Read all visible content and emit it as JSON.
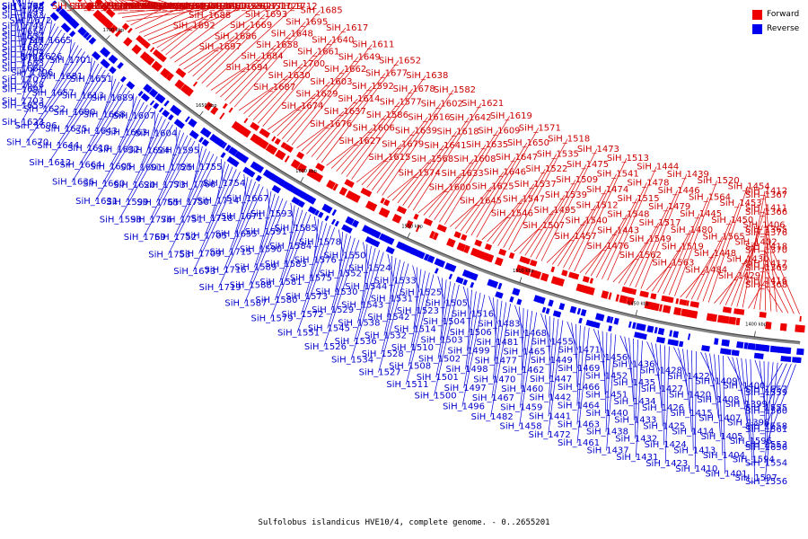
{
  "caption": "Sulfolobus islandicus HVE10/4, complete genome. - 0..2655201",
  "legend": [
    {
      "label": "Forward",
      "color": "#ee0000"
    },
    {
      "label": "Reverse",
      "color": "#0000ee"
    }
  ],
  "scale_ticks": [
    "1700 kbp",
    "1650 kbp",
    "1600 kbp",
    "1550 kbp",
    "1500 kbp",
    "1450 kbp",
    "1400 kbp"
  ],
  "forward_genes": [
    "SiH_1826",
    "SiH_1818",
    "SiH_1807",
    "SiH_1809",
    "SiH_1799",
    "SiH_1790",
    "SiH_1800",
    "SiH_1781",
    "SiH_1794",
    "SiH_1784",
    "SiH_1777",
    "SiH_1762",
    "SiH_1758",
    "SiH_1745",
    "SiH_1742",
    "SiH_1737",
    "SiH_1741",
    "SiH_1733",
    "SiH_1723",
    "SiH_1739",
    "SiH_1728",
    "SiH_1717",
    "SiH_1713",
    "SiH_1711",
    "SiH_1702",
    "SiH_1698",
    "SiH_1743",
    "SiH_1744",
    "SiH_1732",
    "SiH_1699",
    "SiH_1692",
    "SiH_1688",
    "SiH_1680",
    "SiH_1726",
    "SiH_1727",
    "SiH_1710",
    "SiH_1697",
    "SiH_1686",
    "SiH_1669",
    "SiH_1693",
    "SiH_1729",
    "SiH_1712",
    "SiH_1694",
    "SiH_1684",
    "SiH_1658",
    "SiH_1648",
    "SiH_1695",
    "SiH_1685",
    "SiH_1687",
    "SiH_1630",
    "SiH_1700",
    "SiH_1661",
    "SiH_1640",
    "SiH_1617",
    "SiH_1674",
    "SiH_1629",
    "SiH_1603",
    "SiH_1662",
    "SiH_1649",
    "SiH_1611",
    "SiH_1676",
    "SiH_1637",
    "SiH_1614",
    "SiH_1592",
    "SiH_1677",
    "SiH_1652",
    "SiH_1627",
    "SiH_1606",
    "SiH_1586",
    "SiH_1577",
    "SiH_1678",
    "SiH_1638",
    "SiH_1615",
    "SiH_1679",
    "SiH_1639",
    "SiH_1616",
    "SiH_1602",
    "SiH_1582",
    "SiH_1574",
    "SiH_1568",
    "SiH_1641",
    "SiH_1618",
    "SiH_1642",
    "SiH_1621",
    "SiH_1600",
    "SiH_1633",
    "SiH_1608",
    "SiH_1635",
    "SiH_1609",
    "SiH_1619",
    "SiH_1645",
    "SiH_1625",
    "SiH_1646",
    "SiH_1647",
    "SiH_1650",
    "SiH_1571",
    "SiH_1546",
    "SiH_1547",
    "SiH_1537",
    "SiH_1522",
    "SiH_1535",
    "SiH_1518",
    "SiH_1507",
    "SiH_1495",
    "SiH_1539",
    "SiH_1509",
    "SiH_1475",
    "SiH_1473",
    "SiH_1457",
    "SiH_1540",
    "SiH_1512",
    "SiH_1474",
    "SiH_1541",
    "SiH_1513",
    "SiH_1476",
    "SiH_1443",
    "SiH_1548",
    "SiH_1515",
    "SiH_1478",
    "SiH_1444",
    "SiH_1562",
    "SiH_1549",
    "SiH_1517",
    "SiH_1479",
    "SiH_1446",
    "SiH_1439",
    "SiH_1563",
    "SiH_1519",
    "SiH_1480",
    "SiH_1445",
    "SiH_1564",
    "SiH_1520",
    "SiH_1484",
    "SiH_1448",
    "SiH_1565",
    "SiH_1450",
    "SiH_1453",
    "SiH_1454",
    "SiH_1429",
    "SiH_1430",
    "SiH_1402",
    "SiH_1406",
    "SiH_1411",
    "SiH_1412",
    "SiH_1416",
    "SiH_1417",
    "SiH_1418",
    "SiH_1365",
    "SiH_1366",
    "SiH_1367",
    "SiH_1368",
    "SiH_1369",
    "SiH_1370",
    "SiH_1376"
  ],
  "reverse_genes": [
    "SiH_1778",
    "SiH_1768",
    "SiH_1749",
    "SiH_1748",
    "SiH_1747",
    "SiH_1746",
    "SiH_1708",
    "SiH_1683",
    "SiH_1654",
    "SiH_1682",
    "SiH_1653",
    "SiH_1707",
    "SiH_1672",
    "SiH_1634",
    "SiH_1704",
    "SiH_1666",
    "SiH_1628",
    "SiH_1703",
    "SiH_1665",
    "SiH_1626",
    "SiH_1706",
    "SiH_1691",
    "SiH_1659",
    "SiH_1623",
    "SiH_1701",
    "SiH_1681",
    "SiH_1657",
    "SiH_1622",
    "SiH_1696",
    "SiH_1670",
    "SiH_1651",
    "SiH_1613",
    "SiH_1690",
    "SiH_1675",
    "SiH_1644",
    "SiH_1612",
    "SiH_1689",
    "SiH_1668",
    "SiH_1643",
    "SiH_1610",
    "SiH_1664",
    "SiH_1636",
    "SiH_1607",
    "SiH_1663",
    "SiH_1632",
    "SiH_1605",
    "SiH_1660",
    "SiH_1631",
    "SiH_1604",
    "SiH_1624",
    "SiH_1601",
    "SiH_1620",
    "SiH_1599",
    "SiH_1598",
    "SiH_1595",
    "SiH_1725",
    "SiH_1773",
    "SiH_1765",
    "SiH_1776",
    "SiH_1769",
    "SiH_1755",
    "SiH_1766",
    "SiH_1750",
    "SiH_1751",
    "SiH_1752",
    "SiH_1753",
    "SiH_1754",
    "SiH_1714",
    "SiH_1718",
    "SiH_1705",
    "SiH_1709",
    "SiH_1673",
    "SiH_1667",
    "SiH_1671",
    "SiH_1655",
    "SiH_1715",
    "SiH_1716",
    "SiH_1719",
    "SiH_1593",
    "SiH_1591",
    "SiH_1590",
    "SiH_1589",
    "SiH_1588",
    "SiH_1587",
    "SiH_1585",
    "SiH_1584",
    "SiH_1583",
    "SiH_1581",
    "SiH_1580",
    "SiH_1579",
    "SiH_1578",
    "SiH_1576",
    "SiH_1575",
    "SiH_1573",
    "SiH_1572",
    "SiH_1551",
    "SiH_1550",
    "SiH_1552",
    "SiH_1530",
    "SiH_1529",
    "SiH_1545",
    "SiH_1526",
    "SiH_1524",
    "SiH_1544",
    "SiH_1543",
    "SiH_1538",
    "SiH_1536",
    "SiH_1534",
    "SiH_1533",
    "SiH_1531",
    "SiH_1542",
    "SiH_1532",
    "SiH_1528",
    "SiH_1527",
    "SiH_1525",
    "SiH_1523",
    "SiH_1514",
    "SiH_1510",
    "SiH_1508",
    "SiH_1511",
    "SiH_1505",
    "SiH_1504",
    "SiH_1503",
    "SiH_1502",
    "SiH_1501",
    "SiH_1500",
    "SiH_1516",
    "SiH_1506",
    "SiH_1499",
    "SiH_1498",
    "SiH_1497",
    "SiH_1496",
    "SiH_1483",
    "SiH_1481",
    "SiH_1477",
    "SiH_1470",
    "SiH_1467",
    "SiH_1482",
    "SiH_1468",
    "SiH_1465",
    "SiH_1462",
    "SiH_1460",
    "SiH_1459",
    "SiH_1458",
    "SiH_1455",
    "SiH_1449",
    "SiH_1447",
    "SiH_1442",
    "SiH_1441",
    "SiH_1472",
    "SiH_1471",
    "SiH_1469",
    "SiH_1466",
    "SiH_1464",
    "SiH_1463",
    "SiH_1461",
    "SiH_1456",
    "SiH_1452",
    "SiH_1451",
    "SiH_1440",
    "SiH_1438",
    "SiH_1437",
    "SiH_1436",
    "SiH_1435",
    "SiH_1434",
    "SiH_1433",
    "SiH_1432",
    "SiH_1431",
    "SiH_1428",
    "SiH_1427",
    "SiH_1426",
    "SiH_1425",
    "SiH_1424",
    "SiH_1423",
    "SiH_1422",
    "SiH_1420",
    "SiH_1415",
    "SiH_1414",
    "SiH_1413",
    "SiH_1410",
    "SiH_1409",
    "SiH_1408",
    "SiH_1407",
    "SiH_1405",
    "SiH_1404",
    "SiH_1401",
    "SiH_1400",
    "SiH_1399",
    "SiH_1398",
    "SiH_1596",
    "SiH_1594",
    "SiH_1597",
    "SiH_1557",
    "SiH_1555",
    "SiH_1558",
    "SiH_1553",
    "SiH_1554",
    "SiH_1556",
    "SiH_1559",
    "SiH_1560",
    "SiH_1561",
    "SiH_1656"
  ]
}
